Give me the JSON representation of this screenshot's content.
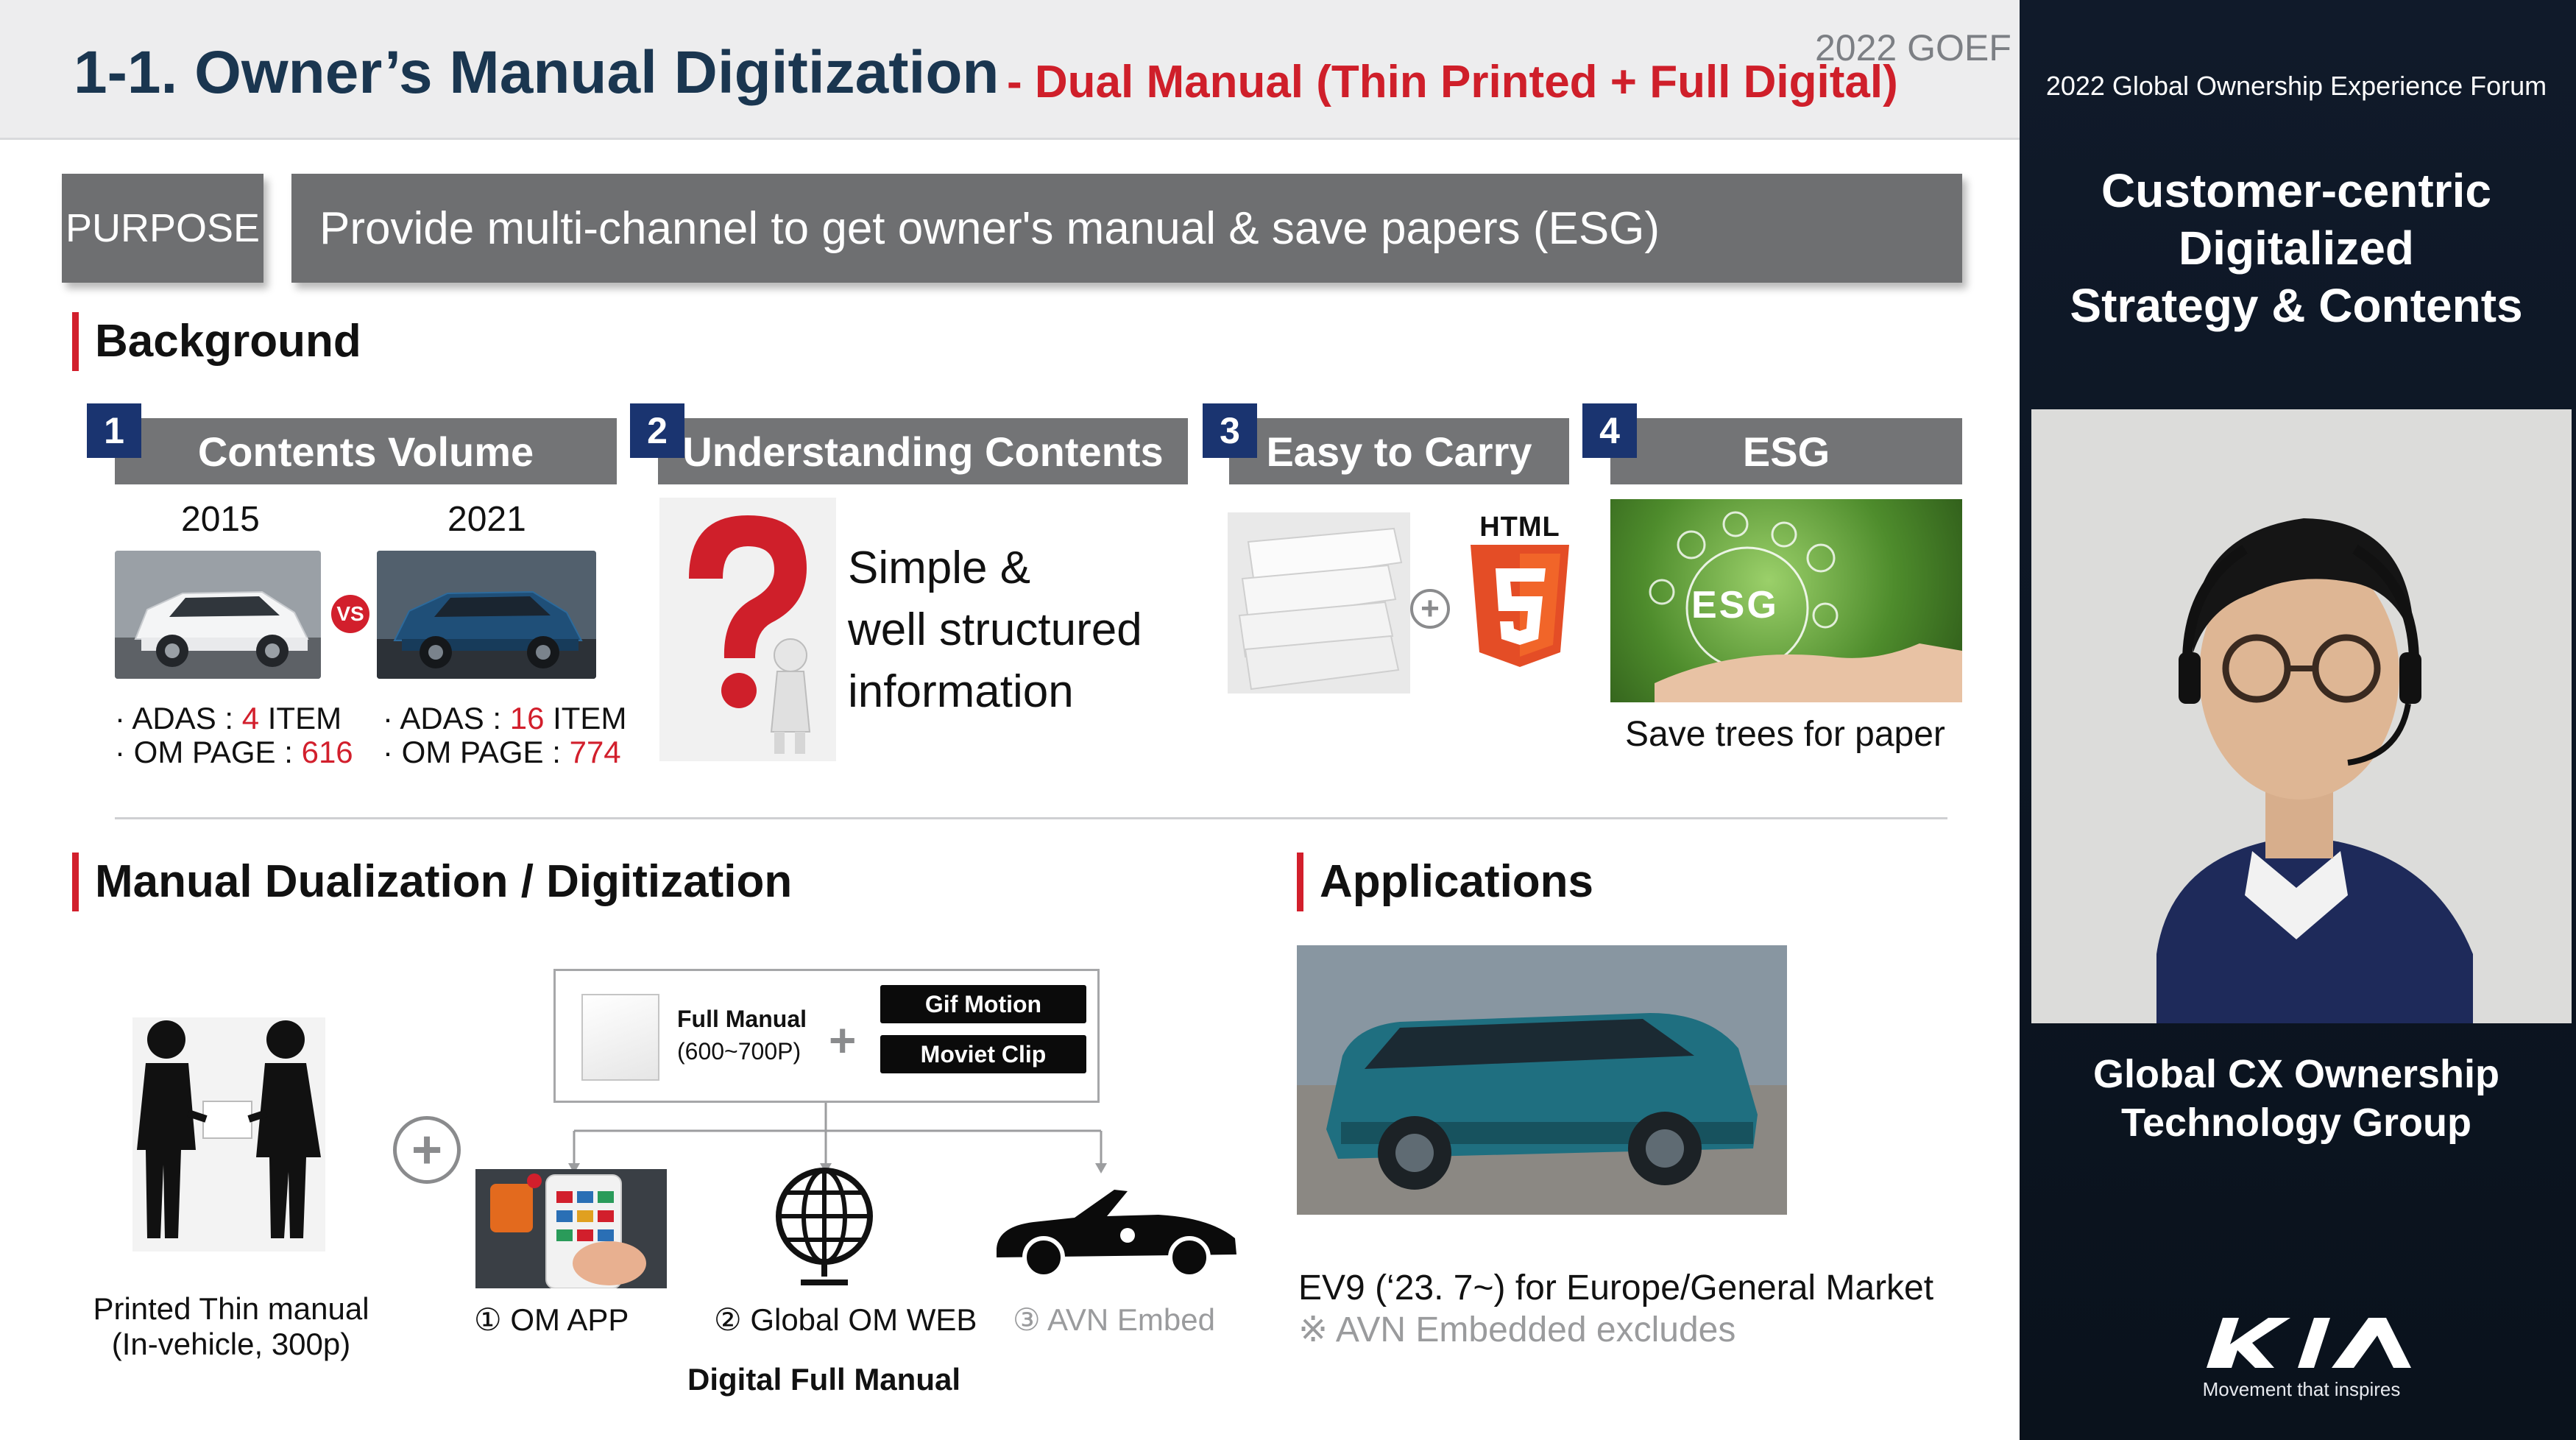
{
  "slide": {
    "title": "1-1. Owner’s Manual Digitization",
    "subtitle": "- Dual Manual (Thin Printed + Full Digital)",
    "tag": "2022 GOEF",
    "purpose": {
      "label": "PURPOSE",
      "text": "Provide multi-channel to get owner's manual & save papers (ESG)"
    },
    "background": {
      "title": "Background",
      "cards": [
        {
          "num": "1",
          "title": "Contents Volume"
        },
        {
          "num": "2",
          "title": "Understanding Contents"
        },
        {
          "num": "3",
          "title": "Easy to Carry"
        },
        {
          "num": "4",
          "title": "ESG"
        }
      ],
      "contents_volume": {
        "vs": "VS",
        "years": [
          {
            "year": "2015",
            "adas_label": "· ADAS : ",
            "adas_value": "4",
            "adas_unit": " ITEM",
            "om_label": "· OM PAGE : ",
            "om_value": "616"
          },
          {
            "year": "2021",
            "adas_label": "· ADAS : ",
            "adas_value": "16",
            "adas_unit": " ITEM",
            "om_label": "· OM PAGE : ",
            "om_value": "774"
          }
        ]
      },
      "understanding_text": "Simple &\nwell structured\ninformation",
      "html_logo_text": "HTML",
      "esg_image_text": "ESG",
      "esg_caption": "Save trees for paper"
    },
    "dualization": {
      "title": "Manual Dualization / Digitization",
      "printed_caption": "Printed Thin manual\n(In-vehicle, 300p)",
      "full_manual_title": "Full Manual",
      "full_manual_pages": "(600~700P)",
      "gif_motion": "Gif Motion",
      "moviet_clip": "Moviet Clip",
      "channels": [
        "① OM APP",
        "② Global OM WEB",
        "③ AVN Embed"
      ],
      "digital_caption": "Digital Full Manual"
    },
    "applications": {
      "title": "Applications",
      "caption": "EV9 (‘23. 7~) for Europe/General Market",
      "note": "※ AVN Embedded excludes"
    }
  },
  "panel": {
    "forum_title": "2022 Global Ownership Experience Forum",
    "title": "Customer-centric\nDigitalized\nStrategy & Contents",
    "group_name": "Global CX Ownership\nTechnology Group",
    "slogan": "Movement that inspires"
  },
  "colors": {
    "title_navy": "#1a3650",
    "accent_red": "#d21f2c",
    "badge_navy": "#1a3470",
    "header_gray": "#737476",
    "panel_bg": "#0c1522"
  }
}
